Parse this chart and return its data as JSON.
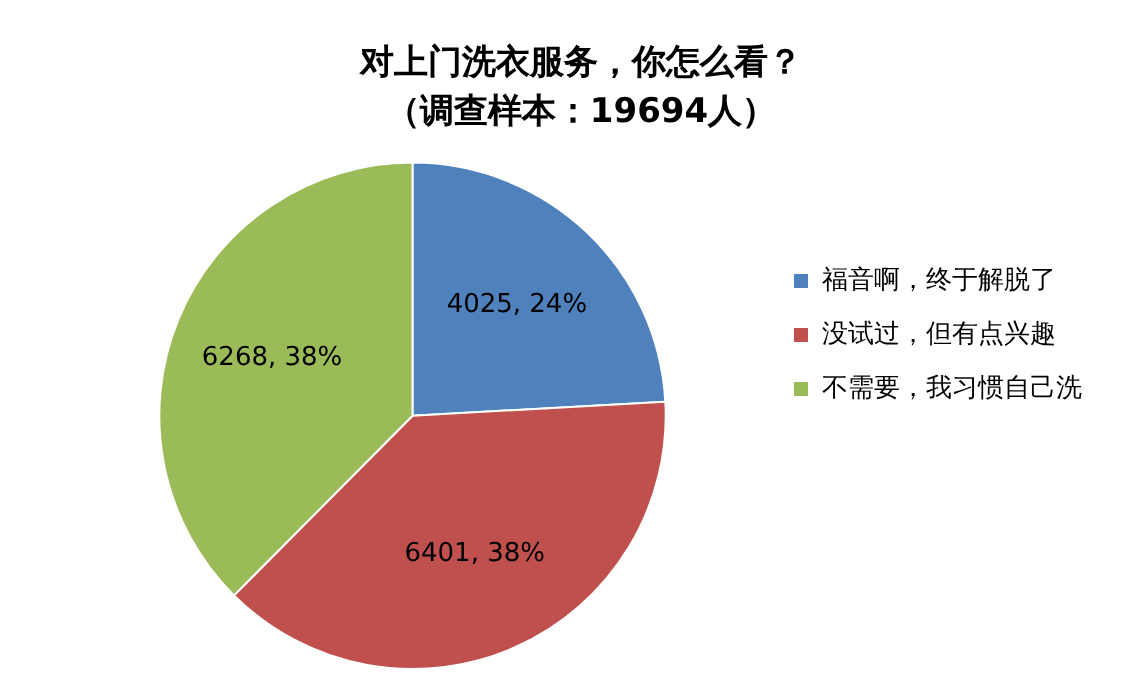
{
  "chart_data": {
    "type": "pie",
    "title": "对上门洗衣服务，你怎么看？",
    "subtitle": "（调查样本：19694人）",
    "categories": [
      "福音啊，终于解脱了",
      "没试过，但有点兴趣",
      "不需要，我习惯自己洗"
    ],
    "values": [
      4025,
      6401,
      6268
    ],
    "value_labels": [
      "4025, 24%",
      "6401, 38%",
      "6268, 38%"
    ],
    "colors": [
      "#4f81bd",
      "#c0504d",
      "#9bbb59"
    ],
    "legend": "right"
  }
}
